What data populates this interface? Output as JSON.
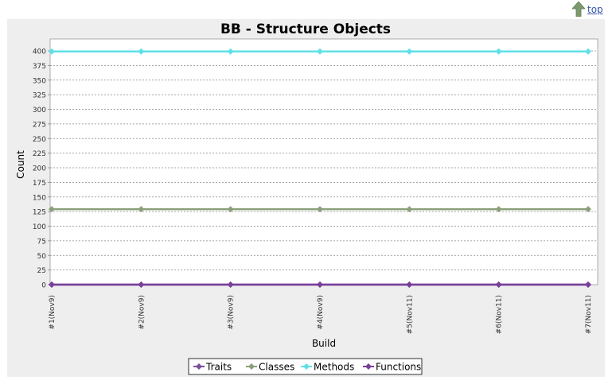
{
  "nav": {
    "top_label": "top",
    "top_icon": "up-arrow-icon"
  },
  "chart_data": {
    "type": "line",
    "title": "BB - Structure Objects",
    "xlabel": "Build",
    "ylabel": "Count",
    "categories": [
      "#1(Nov9)",
      "#2(Nov9)",
      "#3(Nov9)",
      "#4(Nov9)",
      "#5(Nov11)",
      "#6(Nov11)",
      "#7(Nov11)"
    ],
    "ylim": [
      0,
      400
    ],
    "yticks": [
      "0",
      "25",
      "50",
      "75",
      "100",
      "125",
      "150",
      "175",
      "200",
      "225",
      "250",
      "275",
      "300",
      "325",
      "350",
      "375",
      "400"
    ],
    "grid": true,
    "legend_position": "bottom",
    "series": [
      {
        "name": "Traits",
        "color": "#7a4f9a",
        "values": [
          0,
          0,
          0,
          0,
          0,
          0,
          0
        ]
      },
      {
        "name": "Classes",
        "color": "#8aa07a",
        "values": [
          129,
          129,
          129,
          129,
          129,
          129,
          129
        ]
      },
      {
        "name": "Methods",
        "color": "#5fe0e8",
        "values": [
          399,
          399,
          399,
          399,
          399,
          399,
          399
        ]
      },
      {
        "name": "Functions",
        "color": "#7a3f9a",
        "values": [
          0,
          0,
          0,
          0,
          0,
          0,
          0
        ]
      }
    ]
  }
}
